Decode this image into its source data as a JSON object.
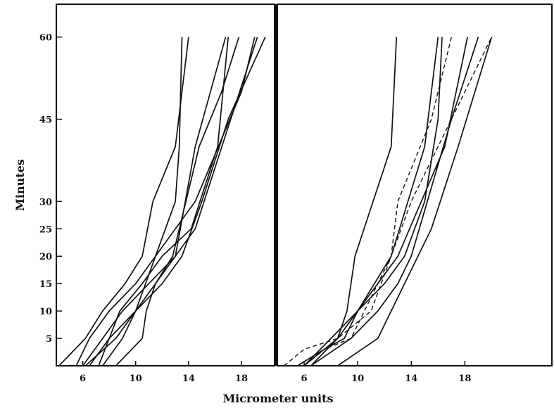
{
  "chart_data": {
    "type": "line",
    "xlabel": "Micrometer units",
    "ylabel": "Minutes",
    "y_ticks": [
      5,
      10,
      15,
      20,
      25,
      30,
      45,
      60
    ],
    "ylim": [
      0,
      66
    ],
    "grid": false,
    "panels": [
      {
        "name": "left",
        "x_ticks": [
          6,
          10,
          14,
          18
        ],
        "xlim": [
          4.0,
          20.5
        ],
        "series": [
          {
            "style": "solid",
            "points": [
              [
                7.2,
                0
              ],
              [
                8.0,
                5
              ],
              [
                8.8,
                10
              ],
              [
                10.5,
                15
              ],
              [
                12.0,
                20
              ],
              [
                14.2,
                25
              ],
              [
                16.2,
                40
              ],
              [
                17.0,
                60
              ]
            ]
          },
          {
            "style": "solid",
            "points": [
              [
                6.5,
                0
              ],
              [
                8.0,
                5
              ],
              [
                10.0,
                10
              ],
              [
                11.5,
                20
              ],
              [
                14.5,
                30
              ],
              [
                18.0,
                50
              ],
              [
                19.0,
                60
              ]
            ]
          },
          {
            "style": "solid",
            "points": [
              [
                6.0,
                0
              ],
              [
                7.5,
                5
              ],
              [
                9.0,
                10
              ],
              [
                11.0,
                15
              ],
              [
                13.0,
                20
              ],
              [
                14.5,
                40
              ],
              [
                16.8,
                60
              ]
            ]
          },
          {
            "style": "solid",
            "points": [
              [
                5.5,
                0
              ],
              [
                6.5,
                5
              ],
              [
                8.0,
                10
              ],
              [
                10.0,
                15
              ],
              [
                11.5,
                20
              ],
              [
                13.0,
                30
              ],
              [
                13.3,
                40
              ],
              [
                13.5,
                60
              ]
            ]
          },
          {
            "style": "solid",
            "points": [
              [
                4.2,
                0
              ],
              [
                6.2,
                5
              ],
              [
                7.5,
                10
              ],
              [
                9.2,
                15
              ],
              [
                10.5,
                20
              ],
              [
                11.3,
                30
              ],
              [
                13.0,
                40
              ],
              [
                14.0,
                60
              ]
            ]
          },
          {
            "style": "solid",
            "points": [
              [
                8.5,
                0
              ],
              [
                10.5,
                5
              ],
              [
                10.8,
                10
              ],
              [
                11.5,
                15
              ],
              [
                12.8,
                20
              ],
              [
                14.8,
                40
              ],
              [
                16.5,
                50
              ],
              [
                17.8,
                60
              ]
            ]
          },
          {
            "style": "solid",
            "points": [
              [
                6.2,
                0
              ],
              [
                8.5,
                5
              ],
              [
                10.0,
                10
              ],
              [
                11.5,
                15
              ],
              [
                13.0,
                20
              ],
              [
                14.5,
                25
              ],
              [
                19.2,
                60
              ]
            ]
          },
          {
            "style": "solid",
            "points": [
              [
                7.5,
                0
              ],
              [
                9.0,
                5
              ],
              [
                10.0,
                10
              ],
              [
                12.0,
                15
              ],
              [
                13.5,
                20
              ],
              [
                15.0,
                30
              ],
              [
                17.0,
                45
              ],
              [
                19.8,
                60
              ]
            ]
          }
        ]
      },
      {
        "name": "right",
        "x_ticks": [
          6,
          10,
          14,
          18
        ],
        "xlim": [
          4.0,
          24.5
        ],
        "series": [
          {
            "style": "solid",
            "points": [
              [
                5.5,
                0
              ],
              [
                7.5,
                3
              ],
              [
                8.5,
                5
              ],
              [
                9.2,
                10
              ],
              [
                9.8,
                20
              ],
              [
                12.5,
                40
              ],
              [
                12.9,
                60
              ]
            ]
          },
          {
            "style": "solid",
            "points": [
              [
                6.0,
                0
              ],
              [
                7.5,
                3
              ],
              [
                9.0,
                5
              ],
              [
                10.0,
                10
              ],
              [
                12.0,
                15
              ],
              [
                13.5,
                20
              ],
              [
                15.0,
                30
              ],
              [
                16.0,
                45
              ],
              [
                16.3,
                60
              ]
            ]
          },
          {
            "style": "solid",
            "points": [
              [
                6.5,
                0
              ],
              [
                8.5,
                5
              ],
              [
                10.0,
                10
              ],
              [
                12.5,
                20
              ],
              [
                15.0,
                40
              ],
              [
                16.0,
                60
              ]
            ]
          },
          {
            "style": "solid",
            "points": [
              [
                8.5,
                0
              ],
              [
                11.5,
                5
              ],
              [
                13.5,
                15
              ],
              [
                15.5,
                25
              ],
              [
                17.5,
                40
              ],
              [
                20.0,
                60
              ]
            ]
          },
          {
            "style": "solid",
            "points": [
              [
                6.5,
                0
              ],
              [
                9.5,
                5
              ],
              [
                11.5,
                10
              ],
              [
                13.0,
                15
              ],
              [
                14.0,
                20
              ],
              [
                17.0,
                45
              ],
              [
                19.0,
                60
              ]
            ]
          },
          {
            "style": "solid",
            "points": [
              [
                6.0,
                0
              ],
              [
                8.0,
                5
              ],
              [
                10.0,
                10
              ],
              [
                13.0,
                20
              ],
              [
                16.5,
                40
              ],
              [
                18.2,
                60
              ]
            ]
          },
          {
            "style": "dashed",
            "points": [
              [
                4.5,
                0
              ],
              [
                6.0,
                3
              ],
              [
                8.5,
                5
              ],
              [
                11.0,
                10
              ],
              [
                12.5,
                20
              ],
              [
                13.0,
                30
              ],
              [
                15.5,
                45
              ],
              [
                17.0,
                60
              ]
            ]
          },
          {
            "style": "dashed",
            "points": [
              [
                5.5,
                0
              ],
              [
                7.5,
                3
              ],
              [
                9.5,
                5
              ],
              [
                10.5,
                10
              ],
              [
                12.5,
                20
              ],
              [
                14.0,
                30
              ],
              [
                17.0,
                45
              ],
              [
                18.0,
                50
              ],
              [
                20.0,
                60
              ]
            ]
          }
        ]
      }
    ]
  }
}
